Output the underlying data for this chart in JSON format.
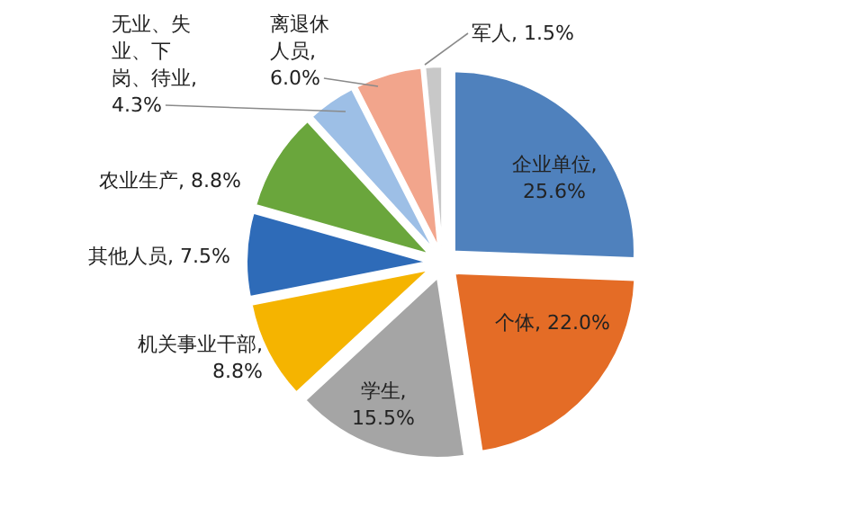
{
  "chart_data": {
    "type": "pie",
    "categories": [
      "企业单位",
      "个体",
      "学生",
      "机关事业干部",
      "其他人员",
      "农业生产",
      "无业、失业、下岗、待业",
      "离退休人员",
      "军人"
    ],
    "values": [
      25.6,
      22.0,
      15.5,
      8.8,
      7.5,
      8.8,
      4.3,
      6.0,
      1.5
    ],
    "value_labels": [
      ", 25.6%",
      ", 22.0%",
      ", 15.5%",
      ", 8.8%",
      ", 7.5%",
      ", 8.8%",
      ", 4.3%",
      ", 6.0%",
      ", 1.5%"
    ],
    "colors": [
      "#4f81bd",
      "#e46c26",
      "#a5a5a5",
      "#f5b400",
      "#2e6bb8",
      "#6aa63c",
      "#9dbfe6",
      "#f2a58c",
      "#c8c8c8"
    ]
  }
}
